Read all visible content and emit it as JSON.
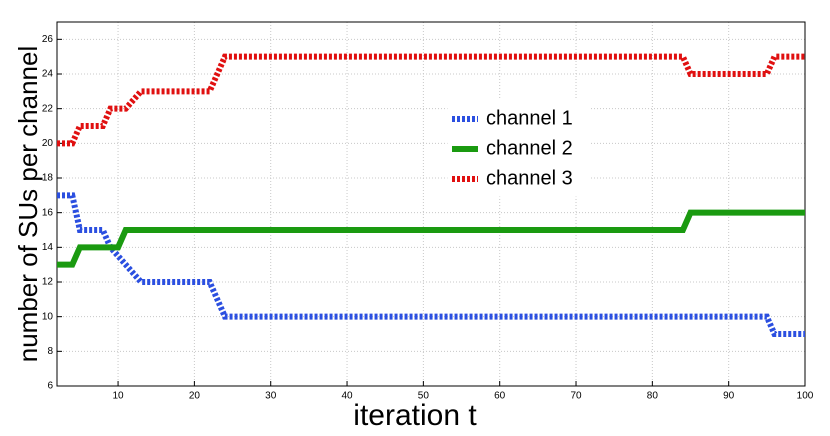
{
  "chart_data": {
    "type": "line",
    "xlabel": "iteration t",
    "ylabel": "number of SUs per channel",
    "x": [
      2,
      4,
      5,
      8,
      9,
      10,
      11,
      12,
      13,
      22,
      24,
      84,
      85,
      95,
      96,
      100
    ],
    "series": [
      {
        "name": "channel 1",
        "color": "#2b4fe0",
        "style": "dotted",
        "values": [
          17,
          17,
          15,
          15,
          14,
          13.5,
          13,
          12.5,
          12,
          12,
          10,
          10,
          10,
          10,
          9,
          9
        ]
      },
      {
        "name": "channel 2",
        "color": "#1a9a10",
        "style": "solid",
        "values": [
          13,
          13,
          14,
          14,
          14,
          14,
          15,
          15,
          15,
          15,
          15,
          15,
          16,
          16,
          16,
          16
        ]
      },
      {
        "name": "channel 3",
        "color": "#e01010",
        "style": "dotted",
        "values": [
          20,
          20,
          21,
          21,
          22,
          22,
          22,
          22.5,
          23,
          23,
          25,
          25,
          24,
          24,
          25,
          25
        ]
      }
    ],
    "xlim": [
      2,
      100
    ],
    "xticks": [
      10,
      20,
      30,
      40,
      50,
      60,
      70,
      80,
      90,
      100
    ],
    "ylim": [
      6,
      27
    ],
    "yticks": [
      6,
      8,
      10,
      12,
      14,
      16,
      18,
      20,
      22,
      24,
      26
    ],
    "grid": true,
    "legend": "center"
  }
}
